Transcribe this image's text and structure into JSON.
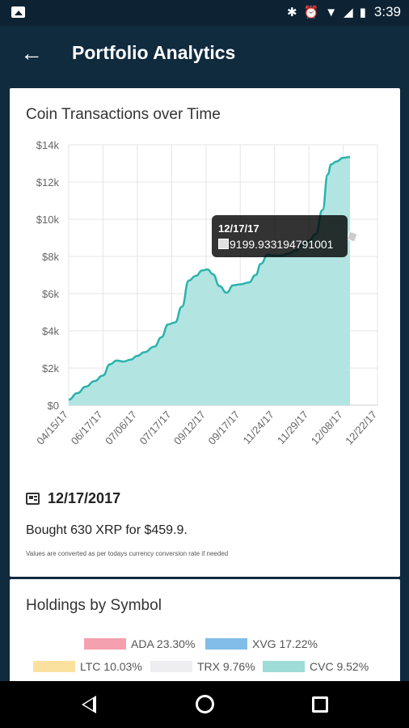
{
  "status_bar": {
    "time": "3:39",
    "icons": [
      "gallery-icon",
      "bluetooth-icon",
      "alarm-icon",
      "wifi-icon",
      "signal-icon",
      "battery-icon"
    ]
  },
  "app_bar": {
    "title": "Portfolio Analytics",
    "back_icon": "arrow-left-icon"
  },
  "transactions_card": {
    "title": "Coin Transactions over Time",
    "tooltip": {
      "date": "12/17/17",
      "value": "9199.933194791001"
    },
    "selected_date": "12/17/2017",
    "selected_description": "Bought 630 XRP for $459.9.",
    "note": "Values are converted as per todays currency conversion rate if needed"
  },
  "chart_data": {
    "type": "area",
    "title": "Coin Transactions over Time",
    "xlabel": "",
    "ylabel": "",
    "ylim": [
      0,
      14000
    ],
    "y_ticks": [
      "$0",
      "$2k",
      "$4k",
      "$6k",
      "$8k",
      "$10k",
      "$12k",
      "$14k"
    ],
    "x_tick_labels": [
      "04/15/17",
      "06/17/17",
      "07/06/17",
      "07/17/17",
      "09/12/17",
      "09/17/17",
      "11/24/17",
      "11/29/17",
      "12/08/17",
      "12/22/17"
    ],
    "grid": true,
    "color": "#2ab3ac",
    "fill": "#b2e5e2",
    "points": [
      [
        0,
        300
      ],
      [
        0.25,
        650
      ],
      [
        0.5,
        1000
      ],
      [
        0.75,
        1300
      ],
      [
        1.0,
        1600
      ],
      [
        1.2,
        2200
      ],
      [
        1.4,
        2400
      ],
      [
        1.6,
        2350
      ],
      [
        1.8,
        2450
      ],
      [
        2.0,
        2650
      ],
      [
        2.2,
        2850
      ],
      [
        2.5,
        3150
      ],
      [
        2.7,
        3650
      ],
      [
        2.9,
        4350
      ],
      [
        3.1,
        4450
      ],
      [
        3.3,
        5300
      ],
      [
        3.5,
        6700
      ],
      [
        3.7,
        6950
      ],
      [
        3.9,
        7250
      ],
      [
        4.05,
        7300
      ],
      [
        4.2,
        7050
      ],
      [
        4.4,
        6400
      ],
      [
        4.6,
        6050
      ],
      [
        4.8,
        6450
      ],
      [
        5.0,
        6500
      ],
      [
        5.25,
        6600
      ],
      [
        5.45,
        7000
      ],
      [
        5.6,
        7600
      ],
      [
        5.8,
        8100
      ],
      [
        6.0,
        8050
      ],
      [
        6.2,
        8050
      ],
      [
        6.4,
        8150
      ],
      [
        6.6,
        8300
      ],
      [
        6.8,
        8600
      ],
      [
        7.0,
        8850
      ],
      [
        7.2,
        9200
      ],
      [
        7.4,
        10500
      ],
      [
        7.55,
        12400
      ],
      [
        7.65,
        12950
      ],
      [
        7.8,
        13100
      ],
      [
        8.0,
        13300
      ],
      [
        8.2,
        13350
      ]
    ],
    "tooltip_index": 35
  },
  "holdings_card": {
    "title": "Holdings by Symbol",
    "legend": [
      {
        "label": "ADA 23.30%",
        "color": "#f4a0ae"
      },
      {
        "label": "XVG 17.22%",
        "color": "#82bde8"
      },
      {
        "label": "LTC 10.03%",
        "color": "#fbe1a0"
      },
      {
        "label": "TRX 9.76%",
        "color": "#eeeef0"
      },
      {
        "label": "CVC 9.52%",
        "color": "#9edcd8"
      }
    ]
  },
  "nav_bar": {
    "icons": [
      "nav-back-icon",
      "nav-home-icon",
      "nav-recents-icon"
    ]
  }
}
